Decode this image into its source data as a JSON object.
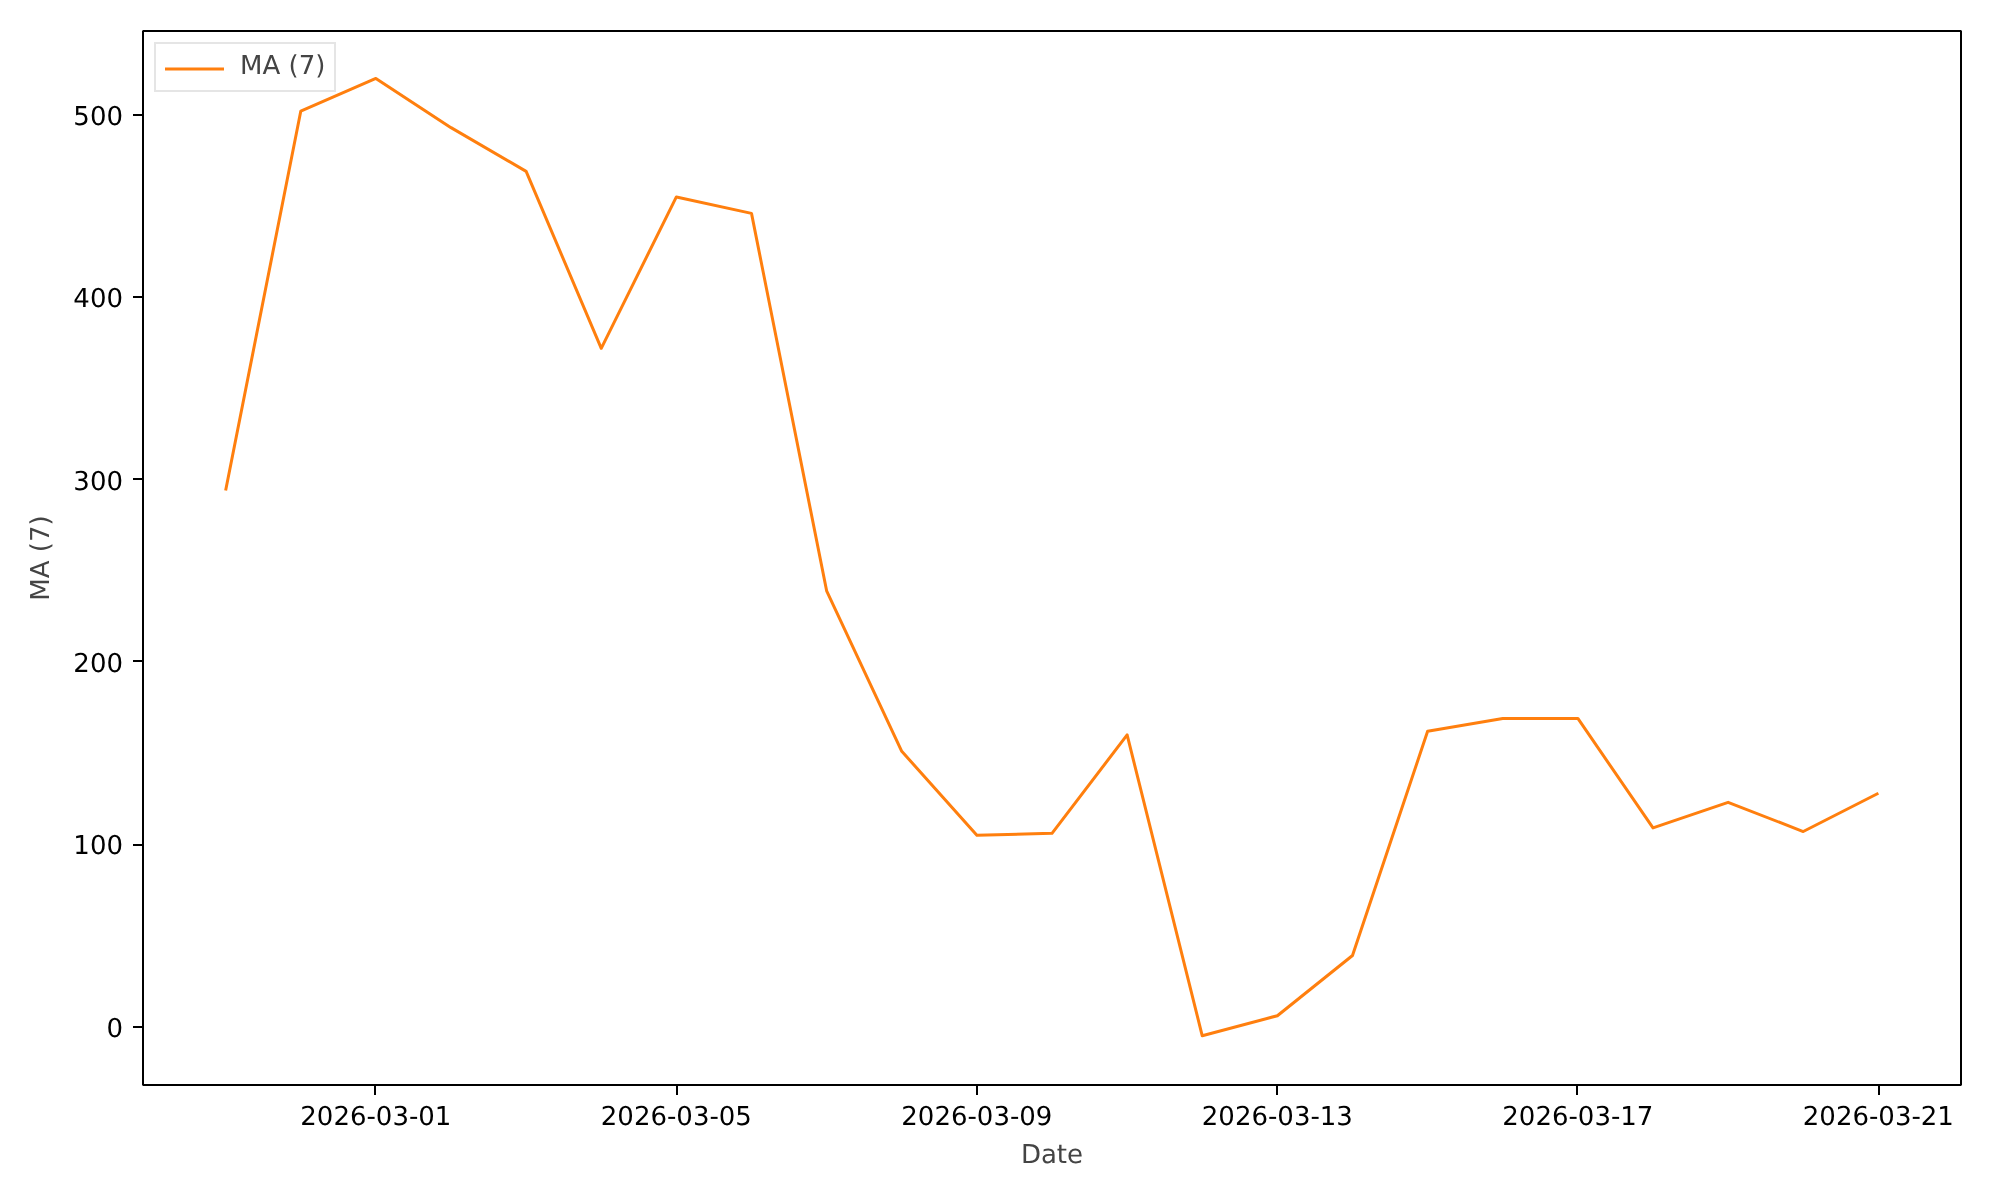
{
  "chart_data": {
    "type": "line",
    "xlabel": "Date",
    "ylabel": "MA (7)",
    "x": [
      "2026-02-27",
      "2026-02-28",
      "2026-03-01",
      "2026-03-02",
      "2026-03-03",
      "2026-03-04",
      "2026-03-05",
      "2026-03-06",
      "2026-03-07",
      "2026-03-08",
      "2026-03-09",
      "2026-03-10",
      "2026-03-11",
      "2026-03-12",
      "2026-03-13",
      "2026-03-14",
      "2026-03-15",
      "2026-03-16",
      "2026-03-17",
      "2026-03-18",
      "2026-03-19",
      "2026-03-20",
      "2026-03-21"
    ],
    "series": [
      {
        "name": "MA (7)",
        "color": "#ff7f0e",
        "values": [
          294,
          502,
          520,
          493,
          469,
          372,
          455,
          446,
          239,
          151,
          105,
          106,
          160,
          -5,
          6,
          39,
          162,
          169,
          169,
          109,
          123,
          107,
          128
        ]
      }
    ],
    "xlim": [
      "2026-02-25T21:36",
      "2026-03-22T02:24"
    ],
    "xticks": [
      "2026-03-01",
      "2026-03-05",
      "2026-03-09",
      "2026-03-13",
      "2026-03-17",
      "2026-03-21"
    ],
    "ylim": [
      -32,
      546
    ],
    "yticks": [
      0,
      100,
      200,
      300,
      400,
      500
    ],
    "legend": "top left"
  }
}
